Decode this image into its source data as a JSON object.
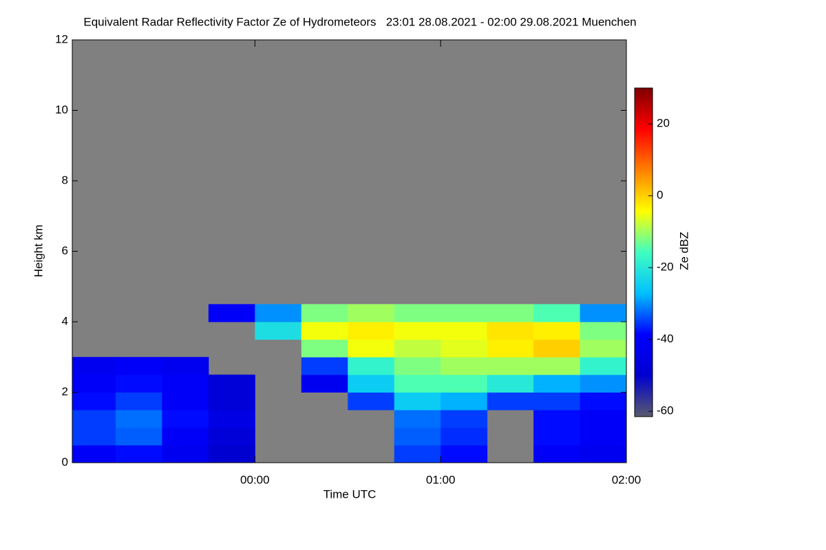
{
  "chart_data": {
    "type": "heatmap",
    "title": "Equivalent Radar Reflectivity Factor Ze of Hydrometeors   23:01 28.08.2021 - 02:00 29.08.2021 Muenchen",
    "xlabel": "Time UTC",
    "ylabel": "Height km",
    "colorbar_label": "Ze dBZ",
    "x_edges": [
      -0.9833,
      -0.75,
      -0.5,
      -0.25,
      0,
      0.25,
      0.5,
      0.75,
      1.0,
      1.25,
      1.5,
      1.75,
      2.0
    ],
    "y_edges": [
      0,
      0.5,
      1.0,
      1.5,
      2.0,
      2.5,
      3.0,
      3.5,
      4.0,
      4.5
    ],
    "z": [
      [
        -40,
        -38,
        -42,
        -50,
        null,
        null,
        null,
        -35,
        -38,
        null,
        -40,
        -42
      ],
      [
        -35,
        -33,
        -40,
        -48,
        null,
        null,
        null,
        -33,
        -36,
        null,
        -38,
        -40
      ],
      [
        -35,
        -32,
        -38,
        -45,
        null,
        null,
        null,
        -32,
        -35,
        null,
        -38,
        -40
      ],
      [
        -38,
        -35,
        -40,
        -48,
        null,
        null,
        -35,
        -25,
        -28,
        -35,
        -35,
        -38
      ],
      [
        -40,
        -38,
        -40,
        -48,
        null,
        -42,
        -25,
        -15,
        -15,
        -20,
        -28,
        -30
      ],
      [
        -42,
        -40,
        -42,
        null,
        null,
        -35,
        -18,
        -12,
        -10,
        -10,
        -10,
        -18
      ],
      [
        null,
        null,
        null,
        null,
        null,
        -12,
        -5,
        -8,
        -6,
        -3,
        0,
        -10
      ],
      [
        null,
        null,
        null,
        null,
        -22,
        -5,
        -3,
        -5,
        -5,
        -2,
        -3,
        -12
      ],
      [
        null,
        null,
        null,
        -40,
        -30,
        -12,
        -10,
        -12,
        -12,
        -12,
        -15,
        -30
      ]
    ],
    "xlim": [
      -0.9833,
      2.0
    ],
    "xticks": [
      {
        "value": 0,
        "label": "00:00"
      },
      {
        "value": 1,
        "label": "01:00"
      },
      {
        "value": 2,
        "label": "02:00"
      }
    ],
    "ylim": [
      0,
      12
    ],
    "yticks": [
      0,
      2,
      4,
      6,
      8,
      10,
      12
    ],
    "zlim": [
      -61.5,
      30
    ],
    "zticks": [
      -60,
      -40,
      -20,
      0,
      20
    ],
    "background": "#808080",
    "colormap": [
      "#5a5a6e",
      "#0000d0",
      "#0000ff",
      "#00c0ff",
      "#40ffc0",
      "#ffff00",
      "#ff8000",
      "#ff0000",
      "#800000"
    ]
  }
}
